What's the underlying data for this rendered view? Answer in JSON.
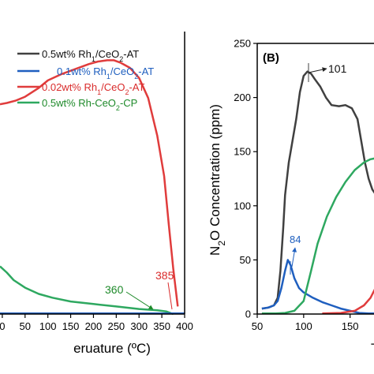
{
  "chart_data": [
    {
      "type": "line",
      "panel_label": "",
      "xlabel": "Temperature (ºC)",
      "ylabel": "",
      "xlim": [
        -5,
        400
      ],
      "ylim": [
        0,
        250
      ],
      "xticks": [
        0,
        50,
        100,
        150,
        200,
        250,
        300,
        350,
        400
      ],
      "xtick_labels": [
        "0",
        "50",
        "100",
        "150",
        "200",
        "250",
        "300",
        "350",
        "400"
      ],
      "legend_position": "top-right",
      "legend": [
        {
          "label": "0.5wt% Rh1/CeO2-AT",
          "color": "#404040"
        },
        {
          "label": "0.1wt% Rh1/CeO2-AT",
          "color": "#1f5fbf"
        },
        {
          "label": "0.02wt% Rh1/CeO2-AT",
          "color": "#e03c3c"
        },
        {
          "label": "0.5wt% Rh-CeO2-CP",
          "color": "#2ea860"
        }
      ],
      "series": [
        {
          "name": "0.02wt% Rh1/CeO2-AT",
          "color": "#e03c3c",
          "x": [
            -5,
            10,
            30,
            50,
            80,
            100,
            130,
            160,
            190,
            210,
            230,
            245,
            260,
            280,
            300,
            320,
            340,
            355,
            365,
            375,
            385
          ],
          "y": [
            167,
            168,
            170,
            173,
            180,
            186,
            191,
            195,
            199,
            201,
            202,
            202,
            200,
            196,
            188,
            172,
            142,
            110,
            72,
            36,
            6
          ]
        },
        {
          "name": "0.5wt% Rh-CeO2-CP",
          "color": "#2ea860",
          "x": [
            -5,
            10,
            25,
            50,
            80,
            110,
            150,
            200,
            250,
            300,
            340,
            360,
            375
          ],
          "y": [
            38,
            33,
            27,
            21,
            16,
            13,
            10,
            8,
            6,
            4,
            3,
            2,
            0
          ]
        },
        {
          "name": "0.1wt% Rh1/CeO2-AT",
          "color": "#1f5fbf",
          "x": [
            -5,
            400
          ],
          "y": [
            0.5,
            0.5
          ]
        }
      ],
      "annotations": [
        {
          "text": "360",
          "x": 338,
          "y": 20,
          "color": "#1e8a2a"
        },
        {
          "text": "385",
          "x": 380,
          "y": 29,
          "color": "#d92b2b"
        }
      ]
    },
    {
      "type": "line",
      "panel_label": "(B)",
      "xlabel": "",
      "ylabel": "N2O Concentration (ppm)",
      "xlim": [
        50,
        180
      ],
      "ylim": [
        0,
        250
      ],
      "yticks": [
        0,
        50,
        100,
        150,
        200,
        250
      ],
      "ytick_labels": [
        "0",
        "50",
        "100",
        "150",
        "200",
        "250"
      ],
      "xticks": [
        50,
        100,
        150
      ],
      "xtick_labels": [
        "50",
        "100",
        "150"
      ],
      "series": [
        {
          "name": "0.5wt% Rh1/CeO2-AT",
          "color": "#404040",
          "x": [
            55,
            62,
            68,
            72,
            75,
            78,
            80,
            84,
            88,
            92,
            96,
            100,
            104,
            108,
            112,
            118,
            124,
            130,
            138,
            145,
            152,
            158,
            162,
            166,
            170,
            174,
            178
          ],
          "y": [
            5,
            6,
            8,
            15,
            40,
            80,
            110,
            140,
            160,
            180,
            205,
            220,
            224,
            222,
            217,
            210,
            200,
            193,
            192,
            193,
            190,
            180,
            160,
            140,
            125,
            115,
            110
          ]
        },
        {
          "name": "0.1wt% Rh1/CeO2-AT",
          "color": "#1f5fbf",
          "x": [
            55,
            62,
            68,
            72,
            76,
            80,
            83,
            86,
            90,
            95,
            100,
            110,
            120,
            130,
            140,
            150,
            160,
            170,
            180
          ],
          "y": [
            5,
            6,
            8,
            12,
            24,
            40,
            50,
            45,
            33,
            24,
            20,
            15,
            11,
            8,
            5,
            3,
            1,
            0.5,
            0.5
          ]
        },
        {
          "name": "0.02wt% Rh1/CeO2-AT",
          "color": "#2ea860",
          "x": [
            55,
            70,
            80,
            90,
            100,
            108,
            115,
            125,
            135,
            145,
            155,
            165,
            172,
            178
          ],
          "y": [
            0.5,
            0.5,
            1,
            3,
            12,
            40,
            65,
            90,
            108,
            122,
            133,
            140,
            143,
            144
          ]
        },
        {
          "name": "0.5wt% Rh-CeO2-CP",
          "color": "#e03c3c",
          "x": [
            120,
            140,
            155,
            165,
            172,
            178
          ],
          "y": [
            0.5,
            1,
            3,
            8,
            15,
            25
          ]
        }
      ],
      "annotations": [
        {
          "text": "101",
          "x": 101,
          "y": 224,
          "color": "#111111"
        },
        {
          "text": "84",
          "x": 84,
          "y": 50,
          "color": "#1f5fbf"
        }
      ]
    }
  ]
}
